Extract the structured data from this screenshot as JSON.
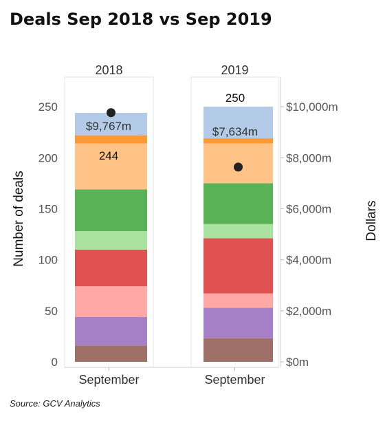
{
  "title": "Deals Sep 2018 vs Sep 2019",
  "source": "Source: GCV Analytics",
  "chart_data": {
    "type": "bar",
    "title": "Deals Sep 2018 vs Sep 2019",
    "columns": [
      "2018",
      "2019"
    ],
    "categories": [
      "September",
      "September"
    ],
    "ylabel_left": "Number of deals",
    "ylabel_right": "Dollars",
    "left_axis": {
      "range": [
        0,
        275
      ],
      "ticks": [
        0,
        50,
        100,
        150,
        200,
        250
      ]
    },
    "right_axis": {
      "range": [
        0,
        11000
      ],
      "ticks": [
        0,
        2000,
        4000,
        6000,
        8000,
        10000
      ],
      "tick_labels": [
        "$0m",
        "$2,000m",
        "$4,000m",
        "$6,000m",
        "$8,000m",
        "$10,000m"
      ]
    },
    "series": [
      {
        "color": "#9e7068",
        "values": [
          16,
          23
        ]
      },
      {
        "color": "#a680c6",
        "values": [
          28,
          30
        ]
      },
      {
        "color": "#ffa8a6",
        "values": [
          30,
          14
        ]
      },
      {
        "color": "#e05252",
        "values": [
          36,
          54
        ]
      },
      {
        "color": "#a9e29e",
        "values": [
          18,
          14
        ]
      },
      {
        "color": "#59b356",
        "values": [
          41,
          40
        ]
      },
      {
        "color": "#ffc287",
        "values": [
          45,
          39
        ]
      },
      {
        "color": "#ff9933",
        "values": [
          8,
          5
        ]
      },
      {
        "color": "#b4cbe8",
        "values": [
          22,
          31
        ]
      }
    ],
    "total_deals": [
      244,
      250
    ],
    "total_deals_labels": [
      "244",
      "250"
    ],
    "dollars_m": [
      9767,
      7634
    ],
    "dollars_labels": [
      "$9,767m",
      "$7,634m"
    ],
    "grid": false
  }
}
